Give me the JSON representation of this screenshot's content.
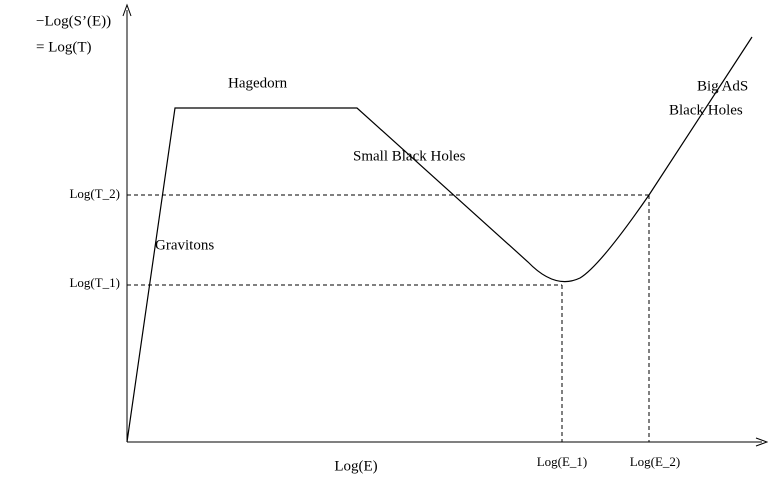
{
  "y_axis_label": {
    "line1": "−Log(S’(E))",
    "line2": "= Log(T)"
  },
  "x_axis_label": "Log(E)",
  "regions": {
    "hagedorn": "Hagedorn",
    "small_black_holes": "Small Black Holes",
    "big_ads_line1": "Big AdS",
    "big_ads_line2": "Black Holes",
    "gravitons": "Gravitons"
  },
  "y_markers": [
    "Log(T_2)",
    "Log(T_1)"
  ],
  "x_markers": [
    "Log(E_1)",
    "Log(E_2)"
  ]
}
